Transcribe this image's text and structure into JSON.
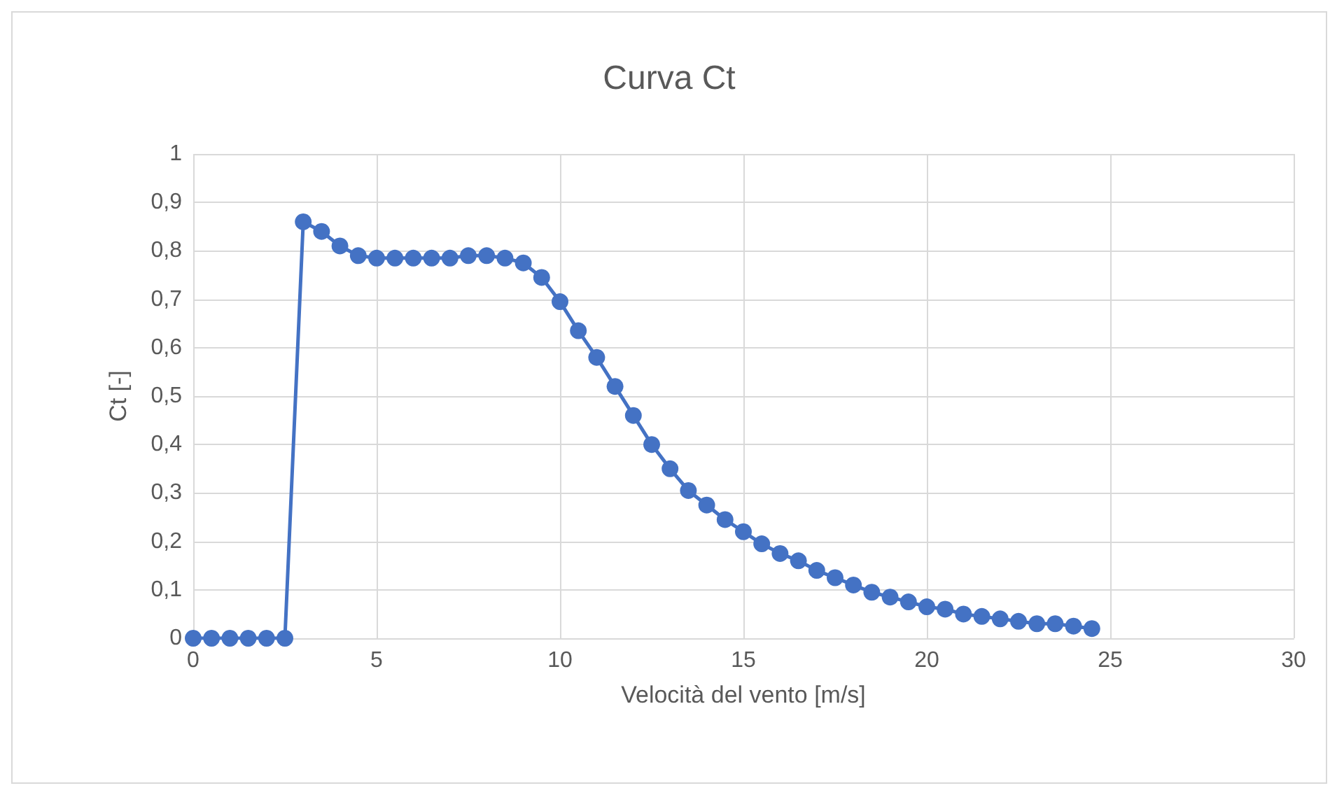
{
  "chart_data": {
    "type": "line",
    "title": "Curva Ct",
    "xlabel": "Velocità del vento [m/s]",
    "ylabel": "Ct [-]",
    "x": [
      0,
      0.5,
      1,
      1.5,
      2,
      2.5,
      3,
      3.5,
      4,
      4.5,
      5,
      5.5,
      6,
      6.5,
      7,
      7.5,
      8,
      8.5,
      9,
      9.5,
      10,
      10.5,
      11,
      11.5,
      12,
      12.5,
      13,
      13.5,
      14,
      14.5,
      15,
      15.5,
      16,
      16.5,
      17,
      17.5,
      18,
      18.5,
      19,
      19.5,
      20,
      20.5,
      21,
      21.5,
      22,
      22.5,
      23,
      23.5,
      24,
      24.5
    ],
    "series": [
      {
        "color": "#4472c4",
        "values": [
          0,
          0,
          0,
          0,
          0,
          0,
          0.86,
          0.84,
          0.81,
          0.79,
          0.785,
          0.785,
          0.785,
          0.785,
          0.785,
          0.79,
          0.79,
          0.785,
          0.775,
          0.745,
          0.695,
          0.635,
          0.58,
          0.52,
          0.46,
          0.4,
          0.35,
          0.305,
          0.275,
          0.245,
          0.22,
          0.195,
          0.175,
          0.16,
          0.14,
          0.125,
          0.11,
          0.095,
          0.085,
          0.075,
          0.065,
          0.06,
          0.05,
          0.045,
          0.04,
          0.035,
          0.03,
          0.03,
          0.025,
          0.02
        ]
      }
    ],
    "xlim": [
      0,
      30
    ],
    "xticks": [
      0,
      5,
      10,
      15,
      20,
      25,
      30
    ],
    "ylim": [
      0,
      1
    ],
    "yticks": [
      0,
      {
        "value": 0.1,
        "label": "0,1"
      },
      {
        "value": 0.2,
        "label": "0,2"
      },
      {
        "value": 0.3,
        "label": "0,3"
      },
      {
        "value": 0.4,
        "label": "0,4"
      },
      {
        "value": 0.5,
        "label": "0,5"
      },
      {
        "value": 0.6,
        "label": "0,6"
      },
      {
        "value": 0.7,
        "label": "0,7"
      },
      {
        "value": 0.8,
        "label": "0,8"
      },
      {
        "value": 0.9,
        "label": "0,9"
      },
      1
    ],
    "grid": true,
    "marker": "circle",
    "line_style": "solid"
  }
}
